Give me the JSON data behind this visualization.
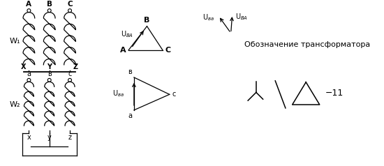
{
  "bg_color": "#ffffff",
  "line_color": "#000000",
  "text_color": "#000000",
  "fig_width": 5.5,
  "fig_height": 2.38,
  "dpi": 100,
  "label_W1": "W₁",
  "label_W2": "W₂",
  "annotation_text": "Обозначение трансформатора",
  "label_11": "−11"
}
